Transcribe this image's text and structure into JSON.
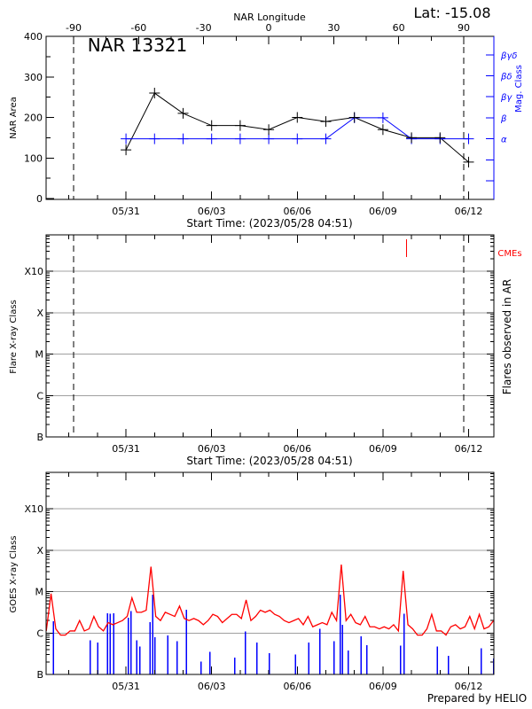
{
  "header": {
    "lat_label": "Lat: -15.08",
    "top_axis_label": "NAR Longitude"
  },
  "prepared_by": "Prepared by HELIO",
  "colors": {
    "black": "#000000",
    "mag_class": "#0000ff",
    "goes_long": "#ff0000",
    "goes_short": "#0000ff",
    "cme": "#ff0000",
    "grid": "#a0a0a0"
  },
  "chart_data": [
    {
      "type": "line",
      "title": "NAR 13321",
      "xlabel": "Start Time: (2023/05/28 04:51)",
      "ylabel": "NAR Area",
      "y2label": "Mag. Class",
      "ylim": [
        0,
        400
      ],
      "yticks": [
        "0",
        "100",
        "200",
        "300",
        "400"
      ],
      "xticks": [
        "05/31",
        "06/03",
        "06/06",
        "06/09",
        "06/12"
      ],
      "top_axis": {
        "label": "NAR Longitude",
        "ticks": [
          "-90",
          "-60",
          "-30",
          "0",
          "30",
          "60",
          "90"
        ]
      },
      "limb_lines_longitude": [
        -90,
        90
      ],
      "mag_class_levels": [
        "",
        "",
        "α",
        "β",
        "βγ",
        "βδ",
        "βγδ"
      ],
      "x": [
        "05/31",
        "06/01",
        "06/02",
        "06/03",
        "06/04",
        "06/05",
        "06/06",
        "06/07",
        "06/08",
        "06/09",
        "06/10",
        "06/11",
        "06/12"
      ],
      "series": [
        {
          "name": "NAR Area",
          "values": [
            120,
            260,
            210,
            180,
            180,
            170,
            200,
            190,
            200,
            170,
            150,
            150,
            90
          ]
        },
        {
          "name": "Mag. Class",
          "values": [
            "α",
            "α",
            "α",
            "α",
            "α",
            "α",
            "α",
            "α",
            "β",
            "β",
            "α",
            "α",
            "α"
          ]
        }
      ]
    },
    {
      "type": "scatter",
      "xlabel": "Start Time: (2023/05/28 04:51)",
      "ylabel": "Flare X-ray Class",
      "y2label": "Flares observed in AR",
      "legend_label": "CMEs",
      "yticks": [
        "B",
        "C",
        "M",
        "X",
        "X10"
      ],
      "xticks": [
        "05/31",
        "06/03",
        "06/06",
        "06/09",
        "06/12"
      ],
      "cmes": [
        "06/09 20:00"
      ],
      "limb_lines_longitude": [
        -90,
        90
      ]
    },
    {
      "type": "line",
      "ylabel": "GOES X-ray Class",
      "yticks": [
        "B",
        "C",
        "M",
        "X",
        "X10"
      ],
      "xticks": [
        "05/31",
        "06/03",
        "06/06",
        "06/09",
        "06/12"
      ],
      "grid": true,
      "long_channel_log10_flux": [
        {
          "date": "05/28",
          "hours": [
            5,
            9,
            13,
            17,
            21
          ],
          "values": [
            -5.95,
            -5.05,
            -5.9,
            -6.05,
            -6.05
          ]
        },
        {
          "date": "05/29",
          "hours": [
            1,
            5,
            9,
            13,
            17,
            21
          ],
          "values": [
            -5.95,
            -5.95,
            -5.7,
            -5.95,
            -5.9,
            -5.6
          ]
        },
        {
          "date": "05/30",
          "hours": [
            1,
            5,
            9,
            13,
            17,
            21
          ],
          "values": [
            -5.85,
            -5.95,
            -5.75,
            -5.8,
            -5.75,
            -5.7
          ]
        },
        {
          "date": "05/31",
          "hours": [
            1,
            5,
            9,
            13,
            17,
            21
          ],
          "values": [
            -5.6,
            -5.15,
            -5.5,
            -5.5,
            -5.45,
            -4.4
          ]
        },
        {
          "date": "06/01",
          "hours": [
            1,
            5,
            9,
            13,
            17,
            21
          ],
          "values": [
            -5.6,
            -5.7,
            -5.5,
            -5.55,
            -5.6,
            -5.35
          ]
        },
        {
          "date": "06/02",
          "hours": [
            1,
            5,
            9,
            13,
            17,
            21
          ],
          "values": [
            -5.65,
            -5.7,
            -5.65,
            -5.7,
            -5.8,
            -5.7
          ]
        },
        {
          "date": "06/03",
          "hours": [
            1,
            5,
            9,
            13,
            17,
            21
          ],
          "values": [
            -5.55,
            -5.6,
            -5.75,
            -5.65,
            -5.55,
            -5.55
          ]
        },
        {
          "date": "06/04",
          "hours": [
            1,
            5,
            9,
            13,
            17,
            21
          ],
          "values": [
            -5.65,
            -5.2,
            -5.7,
            -5.6,
            -5.45,
            -5.5
          ]
        },
        {
          "date": "06/05",
          "hours": [
            1,
            5,
            9,
            13,
            17,
            21
          ],
          "values": [
            -5.45,
            -5.55,
            -5.6,
            -5.7,
            -5.75,
            -5.7
          ]
        },
        {
          "date": "06/06",
          "hours": [
            1,
            5,
            9,
            13,
            17,
            21
          ],
          "values": [
            -5.65,
            -5.8,
            -5.6,
            -5.85,
            -5.8,
            -5.75
          ]
        },
        {
          "date": "06/07",
          "hours": [
            1,
            5,
            9,
            13,
            17,
            21
          ],
          "values": [
            -5.8,
            -5.5,
            -5.7,
            -4.35,
            -5.7,
            -5.55
          ]
        },
        {
          "date": "06/08",
          "hours": [
            1,
            5,
            9,
            13,
            17,
            21
          ],
          "values": [
            -5.75,
            -5.8,
            -5.6,
            -5.85,
            -5.85,
            -5.9
          ]
        },
        {
          "date": "06/09",
          "hours": [
            1,
            5,
            9,
            13,
            17,
            21
          ],
          "values": [
            -5.85,
            -5.9,
            -5.8,
            -5.95,
            -4.5,
            -5.8
          ]
        },
        {
          "date": "06/10",
          "hours": [
            1,
            5,
            9,
            13,
            17,
            21
          ],
          "values": [
            -5.9,
            -6.05,
            -6.05,
            -5.9,
            -5.55,
            -5.95
          ]
        },
        {
          "date": "06/11",
          "hours": [
            1,
            5,
            9,
            13,
            17,
            21
          ],
          "values": [
            -5.95,
            -6.05,
            -5.85,
            -5.8,
            -5.9,
            -5.85
          ]
        },
        {
          "date": "06/12",
          "hours": [
            1,
            5,
            9,
            13,
            17,
            21
          ],
          "values": [
            -5.6,
            -5.9,
            -5.55,
            -5.9,
            -5.85,
            -5.7
          ]
        }
      ],
      "short_channel_log10_flux": [
        [
          "05/28 10:50",
          -5.72
        ],
        [
          "05/29 18:07",
          -6.18
        ],
        [
          "05/30 00:05",
          -6.23
        ],
        [
          "05/30 08:17",
          -5.52
        ],
        [
          "05/30 10:31",
          -5.54
        ],
        [
          "05/30 13:30",
          -5.52
        ],
        [
          "05/31 02:10",
          -5.63
        ],
        [
          "05/31 04:20",
          -5.47
        ],
        [
          "05/31 08:53",
          -6.18
        ],
        [
          "05/31 11:50",
          -6.33
        ],
        [
          "05/31 20:04",
          -5.74
        ],
        [
          "05/31 22:18",
          -5.08
        ],
        [
          "06/01 00:30",
          -6.1
        ],
        [
          "06/01 11:00",
          -6.06
        ],
        [
          "06/01 19:09",
          -6.2
        ],
        [
          "06/02 02:37",
          -5.44
        ],
        [
          "06/02 15:17",
          -6.69
        ],
        [
          "06/02 22:44",
          -6.45
        ],
        [
          "06/03 19:36",
          -6.59
        ],
        [
          "06/04 04:33",
          -5.96
        ],
        [
          "06/04 14:14",
          -6.23
        ],
        [
          "06/05 00:40",
          -6.49
        ],
        [
          "06/05 22:18",
          -6.52
        ],
        [
          "06/06 09:29",
          -6.23
        ],
        [
          "06/06 19:09",
          -5.9
        ],
        [
          "06/07 07:05",
          -6.2
        ],
        [
          "06/07 12:17",
          -5.07
        ],
        [
          "06/07 13:48",
          -5.8
        ],
        [
          "06/07 19:00",
          -6.42
        ],
        [
          "06/08 05:27",
          -6.08
        ],
        [
          "06/08 10:39",
          -6.29
        ],
        [
          "06/09 14:59",
          -6.31
        ],
        [
          "06/09 17:58",
          -5.54
        ],
        [
          "06/10 21:33",
          -6.33
        ],
        [
          "06/11 07:13",
          -6.55
        ],
        [
          "06/12 10:48",
          -6.37
        ],
        [
          "06/12 21:14",
          -6.61
        ]
      ]
    }
  ]
}
